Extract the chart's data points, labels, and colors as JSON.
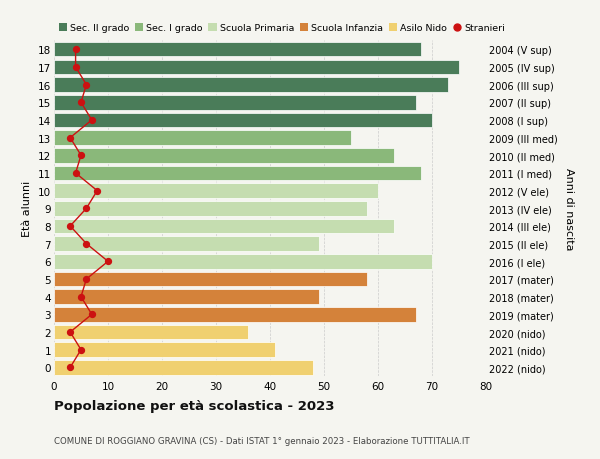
{
  "ages": [
    18,
    17,
    16,
    15,
    14,
    13,
    12,
    11,
    10,
    9,
    8,
    7,
    6,
    5,
    4,
    3,
    2,
    1,
    0
  ],
  "years": [
    "2004 (V sup)",
    "2005 (IV sup)",
    "2006 (III sup)",
    "2007 (II sup)",
    "2008 (I sup)",
    "2009 (III med)",
    "2010 (II med)",
    "2011 (I med)",
    "2012 (V ele)",
    "2013 (IV ele)",
    "2014 (III ele)",
    "2015 (II ele)",
    "2016 (I ele)",
    "2017 (mater)",
    "2018 (mater)",
    "2019 (mater)",
    "2020 (nido)",
    "2021 (nido)",
    "2022 (nido)"
  ],
  "bar_values": [
    68,
    75,
    73,
    67,
    70,
    55,
    63,
    68,
    60,
    58,
    63,
    49,
    70,
    58,
    49,
    67,
    36,
    41,
    48
  ],
  "bar_colors": [
    "#4a7c59",
    "#4a7c59",
    "#4a7c59",
    "#4a7c59",
    "#4a7c59",
    "#8ab87a",
    "#8ab87a",
    "#8ab87a",
    "#c5ddb0",
    "#c5ddb0",
    "#c5ddb0",
    "#c5ddb0",
    "#c5ddb0",
    "#d4823a",
    "#d4823a",
    "#d4823a",
    "#f0d070",
    "#f0d070",
    "#f0d070"
  ],
  "stranieri": [
    4,
    4,
    6,
    5,
    7,
    3,
    5,
    4,
    8,
    6,
    3,
    6,
    10,
    6,
    5,
    7,
    3,
    5,
    3
  ],
  "legend_labels": [
    "Sec. II grado",
    "Sec. I grado",
    "Scuola Primaria",
    "Scuola Infanzia",
    "Asilo Nido",
    "Stranieri"
  ],
  "legend_colors": [
    "#4a7c59",
    "#8ab87a",
    "#c5ddb0",
    "#d4823a",
    "#f0d070",
    "#cc1111"
  ],
  "title": "Popolazione per età scolastica - 2023",
  "subtitle": "COMUNE DI ROGGIANO GRAVINA (CS) - Dati ISTAT 1° gennaio 2023 - Elaborazione TUTTITALIA.IT",
  "ylabel_left": "Età alunni",
  "ylabel_right": "Anni di nascita",
  "xlim": [
    0,
    80
  ],
  "bg_color": "#f5f5f0",
  "grid_color": "#cccccc",
  "stranieri_color": "#cc1111",
  "bar_edge_color": "white",
  "bar_height": 0.82
}
